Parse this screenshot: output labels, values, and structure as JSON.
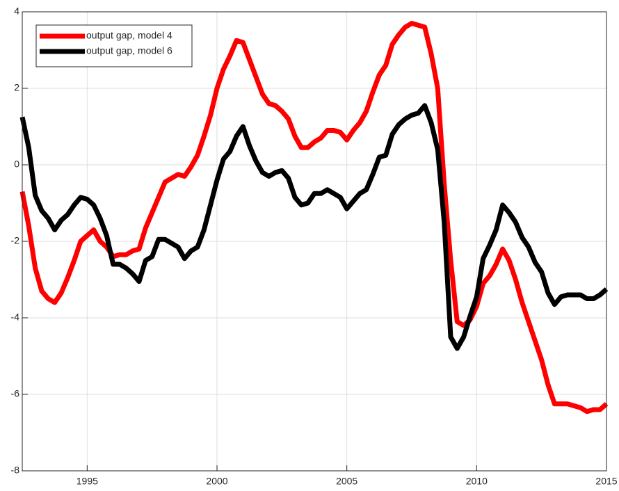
{
  "chart_data": {
    "type": "line",
    "x": [
      1992.5,
      1992.75,
      1993,
      1993.25,
      1993.5,
      1993.75,
      1994,
      1994.25,
      1994.5,
      1994.75,
      1995,
      1995.25,
      1995.5,
      1995.75,
      1996,
      1996.25,
      1996.5,
      1996.75,
      1997,
      1997.25,
      1997.5,
      1997.75,
      1998,
      1998.25,
      1998.5,
      1998.75,
      1999,
      1999.25,
      1999.5,
      1999.75,
      2000,
      2000.25,
      2000.5,
      2000.75,
      2001,
      2001.25,
      2001.5,
      2001.75,
      2002,
      2002.25,
      2002.5,
      2002.75,
      2003,
      2003.25,
      2003.5,
      2003.75,
      2004,
      2004.25,
      2004.5,
      2004.75,
      2005,
      2005.25,
      2005.5,
      2005.75,
      2006,
      2006.25,
      2006.5,
      2006.75,
      2007,
      2007.25,
      2007.5,
      2007.75,
      2008,
      2008.25,
      2008.5,
      2008.75,
      2009,
      2009.25,
      2009.5,
      2009.75,
      2010,
      2010.25,
      2010.5,
      2010.75,
      2011,
      2011.25,
      2011.5,
      2011.75,
      2012,
      2012.25,
      2012.5,
      2012.75,
      2013,
      2013.25,
      2013.5,
      2013.75,
      2014,
      2014.25,
      2014.5,
      2014.75,
      2015
    ],
    "series": [
      {
        "name": "output gap, model 4",
        "color": "#ff0000",
        "values": [
          -0.7,
          -1.6,
          -2.7,
          -3.3,
          -3.5,
          -3.6,
          -3.35,
          -2.95,
          -2.5,
          -2.0,
          -1.85,
          -1.7,
          -2.0,
          -2.15,
          -2.4,
          -2.35,
          -2.35,
          -2.25,
          -2.2,
          -1.65,
          -1.25,
          -0.85,
          -0.45,
          -0.35,
          -0.25,
          -0.3,
          -0.05,
          0.25,
          0.75,
          1.3,
          2.0,
          2.5,
          2.85,
          3.25,
          3.2,
          2.75,
          2.3,
          1.85,
          1.6,
          1.55,
          1.4,
          1.2,
          0.75,
          0.45,
          0.45,
          0.6,
          0.7,
          0.9,
          0.9,
          0.85,
          0.65,
          0.9,
          1.1,
          1.4,
          1.9,
          2.35,
          2.6,
          3.15,
          3.4,
          3.6,
          3.7,
          3.65,
          3.6,
          2.9,
          2.0,
          -0.5,
          -2.5,
          -4.1,
          -4.2,
          -4.05,
          -3.7,
          -3.1,
          -2.9,
          -2.6,
          -2.2,
          -2.5,
          -3.0,
          -3.6,
          -4.1,
          -4.6,
          -5.1,
          -5.75,
          -6.25,
          -6.25,
          -6.25,
          -6.3,
          -6.35,
          -6.45,
          -6.4,
          -6.4,
          -6.25
        ]
      },
      {
        "name": "output gap, model 6",
        "color": "#000000",
        "values": [
          1.25,
          0.45,
          -0.8,
          -1.2,
          -1.4,
          -1.7,
          -1.45,
          -1.3,
          -1.05,
          -0.85,
          -0.9,
          -1.05,
          -1.4,
          -1.85,
          -2.6,
          -2.6,
          -2.7,
          -2.85,
          -3.05,
          -2.5,
          -2.4,
          -1.95,
          -1.95,
          -2.05,
          -2.15,
          -2.45,
          -2.25,
          -2.15,
          -1.7,
          -1.05,
          -0.4,
          0.15,
          0.35,
          0.75,
          1.0,
          0.5,
          0.1,
          -0.2,
          -0.3,
          -0.2,
          -0.15,
          -0.35,
          -0.85,
          -1.05,
          -1.0,
          -0.75,
          -0.75,
          -0.65,
          -0.75,
          -0.85,
          -1.15,
          -0.95,
          -0.75,
          -0.65,
          -0.25,
          0.2,
          0.25,
          0.8,
          1.05,
          1.2,
          1.3,
          1.35,
          1.55,
          1.1,
          0.4,
          -1.5,
          -4.5,
          -4.8,
          -4.5,
          -3.95,
          -3.45,
          -2.45,
          -2.1,
          -1.7,
          -1.05,
          -1.25,
          -1.5,
          -1.9,
          -2.15,
          -2.55,
          -2.8,
          -3.35,
          -3.65,
          -3.45,
          -3.4,
          -3.4,
          -3.4,
          -3.5,
          -3.5,
          -3.4,
          -3.25
        ]
      }
    ],
    "xlim": [
      1992.5,
      2015
    ],
    "xticks": [
      1995,
      2000,
      2005,
      2010,
      2015
    ],
    "ylim": [
      -8,
      4
    ],
    "yticks": [
      -8,
      -6,
      -4,
      -2,
      0,
      2,
      4
    ],
    "grid": true,
    "legend": "upper-left"
  }
}
